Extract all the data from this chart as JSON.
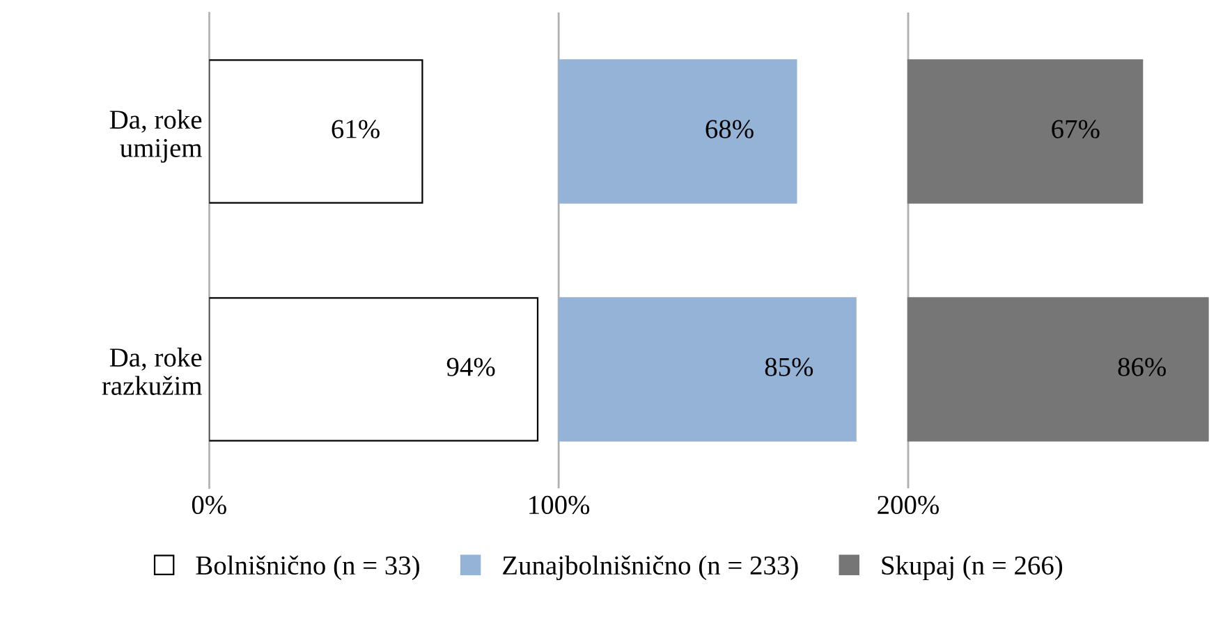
{
  "chart_data": {
    "type": "bar",
    "orientation": "horizontal",
    "categories": [
      "Da, roke\numijem",
      "Da, roke\nrazkužim"
    ],
    "series": [
      {
        "name": "Bolnišnično (n = 33)",
        "color": "#ffffff",
        "base": [
          0,
          0
        ],
        "values": [
          61,
          94
        ],
        "value_labels": [
          "61%",
          "94%"
        ]
      },
      {
        "name": "Zunajbolnišnično (n = 233)",
        "color": "#95b3d7",
        "base": [
          100,
          100
        ],
        "values": [
          68,
          85
        ],
        "value_labels": [
          "68%",
          "85%"
        ]
      },
      {
        "name": "Skupaj (n = 266)",
        "color": "#767676",
        "base": [
          200,
          200
        ],
        "values": [
          67,
          86
        ],
        "value_labels": [
          "67%",
          "86%"
        ]
      }
    ],
    "xlim": [
      0,
      286
    ],
    "xticks": [
      {
        "value": 0,
        "label": "0%"
      },
      {
        "value": 100,
        "label": "100%"
      },
      {
        "value": 200,
        "label": "200%"
      }
    ],
    "grid": "x",
    "legend": "bottom"
  }
}
